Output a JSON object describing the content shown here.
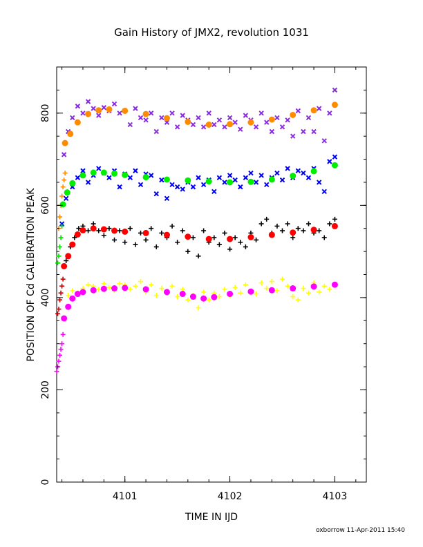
{
  "chart_data": {
    "type": "scatter",
    "title": "Gain History of JMX2, revolution 1031",
    "xlabel": "TIME IN IJD",
    "ylabel": "POSITION OF Cd CALIBRATION PEAK",
    "xlim": [
      4100.35,
      4103.3
    ],
    "ylim": [
      0,
      900
    ],
    "xticks": [
      4101,
      4102,
      4103
    ],
    "xtick_labels": [
      "4101",
      "4102",
      "4103"
    ],
    "yticks": [
      0,
      200,
      400,
      600,
      800
    ],
    "ytick_labels": [
      "0",
      "200",
      "400",
      "600",
      "800"
    ],
    "grid": false,
    "legend": "none",
    "series": [
      {
        "color": "#8a2be2",
        "marker": "x",
        "x": [
          4100.42,
          4100.46,
          4100.5,
          4100.55,
          4100.6,
          4100.65,
          4100.7,
          4100.75,
          4100.8,
          4100.85,
          4100.9,
          4100.95,
          4101.0,
          4101.05,
          4101.1,
          4101.15,
          4101.2,
          4101.25,
          4101.3,
          4101.35,
          4101.4,
          4101.45,
          4101.5,
          4101.55,
          4101.6,
          4101.65,
          4101.7,
          4101.75,
          4101.8,
          4101.85,
          4101.9,
          4101.95,
          4102.0,
          4102.05,
          4102.1,
          4102.15,
          4102.2,
          4102.25,
          4102.3,
          4102.35,
          4102.4,
          4102.45,
          4102.5,
          4102.55,
          4102.6,
          4102.65,
          4102.7,
          4102.75,
          4102.8,
          4102.85,
          4102.9,
          4102.95,
          4103.0
        ],
        "y": [
          710,
          760,
          790,
          815,
          800,
          825,
          810,
          795,
          812,
          805,
          820,
          800,
          805,
          775,
          810,
          790,
          785,
          800,
          760,
          790,
          780,
          800,
          770,
          795,
          785,
          775,
          790,
          770,
          800,
          775,
          785,
          770,
          790,
          780,
          765,
          795,
          785,
          770,
          800,
          780,
          760,
          790,
          770,
          785,
          750,
          805,
          760,
          790,
          760,
          810,
          740,
          800,
          850
        ]
      },
      {
        "color": "#ff8c00",
        "marker": "+",
        "x": [
          4100.37,
          4100.38,
          4100.39,
          4100.4,
          4100.41,
          4100.42,
          4100.43
        ],
        "y": [
          550,
          575,
          600,
          620,
          640,
          655,
          670
        ]
      },
      {
        "color": "#ff8c00",
        "marker": "thick",
        "x": [
          4100.43,
          4100.48,
          4100.55,
          4100.65,
          4100.75,
          4100.85,
          4101.0,
          4101.2,
          4101.4,
          4101.6,
          4101.8,
          4102.0,
          4102.2,
          4102.4,
          4102.6,
          4102.8,
          4103.0
        ],
        "y": [
          735,
          755,
          780,
          798,
          806,
          808,
          805,
          798,
          789,
          781,
          775,
          776,
          780,
          786,
          796,
          806,
          818
        ]
      },
      {
        "color": "#0000ff",
        "marker": "x",
        "x": [
          4100.4,
          4100.44,
          4100.5,
          4100.55,
          4100.6,
          4100.65,
          4100.7,
          4100.75,
          4100.8,
          4100.85,
          4100.9,
          4100.95,
          4101.0,
          4101.05,
          4101.1,
          4101.15,
          4101.2,
          4101.25,
          4101.3,
          4101.35,
          4101.4,
          4101.45,
          4101.5,
          4101.55,
          4101.6,
          4101.65,
          4101.7,
          4101.75,
          4101.8,
          4101.85,
          4101.9,
          4101.95,
          4102.0,
          4102.05,
          4102.1,
          4102.15,
          4102.2,
          4102.25,
          4102.3,
          4102.35,
          4102.4,
          4102.45,
          4102.5,
          4102.55,
          4102.6,
          4102.65,
          4102.7,
          4102.75,
          4102.8,
          4102.85,
          4102.9,
          4102.95,
          4103.0
        ],
        "y": [
          560,
          615,
          640,
          660,
          675,
          650,
          665,
          680,
          670,
          660,
          675,
          640,
          668,
          660,
          675,
          645,
          668,
          665,
          625,
          655,
          615,
          645,
          640,
          635,
          650,
          640,
          660,
          645,
          655,
          630,
          660,
          650,
          665,
          655,
          640,
          660,
          670,
          650,
          665,
          645,
          660,
          670,
          655,
          680,
          660,
          675,
          670,
          660,
          680,
          650,
          630,
          695,
          705
        ]
      },
      {
        "color": "#00dd00",
        "marker": "+",
        "x": [
          4100.36,
          4100.37,
          4100.38,
          4100.39,
          4100.4
        ],
        "y": [
          475,
          490,
          510,
          530,
          555
        ]
      },
      {
        "color": "#00ee00",
        "marker": "thick",
        "x": [
          4100.41,
          4100.45,
          4100.5,
          4100.6,
          4100.7,
          4100.8,
          4100.9,
          4101.0,
          4101.2,
          4101.4,
          4101.6,
          4101.8,
          4102.0,
          4102.2,
          4102.4,
          4102.6,
          4102.8,
          4103.0
        ],
        "y": [
          602,
          628,
          648,
          665,
          671,
          671,
          669,
          666,
          661,
          656,
          654,
          652,
          650,
          651,
          656,
          664,
          674,
          687
        ]
      },
      {
        "color": "#000000",
        "marker": "+",
        "x": [
          4100.44,
          4100.48,
          4100.52,
          4100.56,
          4100.6,
          4100.65,
          4100.7,
          4100.75,
          4100.8,
          4100.85,
          4100.9,
          4100.95,
          4101.0,
          4101.05,
          4101.1,
          4101.15,
          4101.2,
          4101.25,
          4101.3,
          4101.35,
          4101.4,
          4101.45,
          4101.5,
          4101.55,
          4101.6,
          4101.65,
          4101.7,
          4101.75,
          4101.8,
          4101.85,
          4101.9,
          4101.95,
          4102.0,
          4102.05,
          4102.1,
          4102.15,
          4102.2,
          4102.25,
          4102.3,
          4102.35,
          4102.4,
          4102.45,
          4102.5,
          4102.55,
          4102.6,
          4102.65,
          4102.7,
          4102.75,
          4102.8,
          4102.85,
          4102.9,
          4102.95,
          4103.0
        ],
        "y": [
          480,
          510,
          530,
          550,
          555,
          545,
          560,
          545,
          535,
          550,
          525,
          545,
          520,
          550,
          515,
          540,
          525,
          550,
          510,
          540,
          530,
          555,
          520,
          545,
          500,
          530,
          490,
          545,
          520,
          530,
          515,
          540,
          505,
          530,
          520,
          510,
          540,
          525,
          560,
          570,
          540,
          555,
          545,
          560,
          530,
          550,
          545,
          560,
          540,
          545,
          530,
          560,
          570
        ]
      },
      {
        "color": "#cc0000",
        "marker": "+",
        "x": [
          4100.36,
          4100.37,
          4100.38,
          4100.39,
          4100.4,
          4100.41
        ],
        "y": [
          365,
          375,
          395,
          410,
          425,
          440
        ]
      },
      {
        "color": "#ff0000",
        "marker": "thick",
        "x": [
          4100.42,
          4100.46,
          4100.5,
          4100.55,
          4100.6,
          4100.7,
          4100.8,
          4100.9,
          4101.0,
          4101.2,
          4101.4,
          4101.6,
          4101.8,
          4102.0,
          4102.2,
          4102.4,
          4102.6,
          4102.8,
          4103.0
        ],
        "y": [
          468,
          490,
          515,
          537,
          546,
          550,
          548,
          545,
          543,
          540,
          536,
          532,
          527,
          527,
          531,
          536,
          541,
          547,
          555
        ]
      },
      {
        "color": "#ffff00",
        "marker": "+",
        "x": [
          4100.46,
          4100.5,
          4100.55,
          4100.6,
          4100.65,
          4100.7,
          4100.75,
          4100.8,
          4100.85,
          4100.9,
          4100.95,
          4101.0,
          4101.05,
          4101.1,
          4101.15,
          4101.2,
          4101.25,
          4101.3,
          4101.35,
          4101.4,
          4101.45,
          4101.5,
          4101.55,
          4101.6,
          4101.65,
          4101.7,
          4101.75,
          4101.8,
          4101.85,
          4101.9,
          4101.95,
          4102.0,
          4102.05,
          4102.1,
          4102.15,
          4102.2,
          4102.25,
          4102.3,
          4102.35,
          4102.4,
          4102.45,
          4102.5,
          4102.55,
          4102.6,
          4102.65,
          4102.7,
          4102.75,
          4102.8,
          4102.85,
          4102.9,
          4102.95,
          4103.0
        ],
        "y": [
          405,
          415,
          410,
          420,
          428,
          425,
          418,
          430,
          422,
          415,
          430,
          428,
          418,
          425,
          435,
          412,
          428,
          405,
          420,
          410,
          425,
          402,
          418,
          395,
          405,
          378,
          412,
          395,
          410,
          402,
          418,
          405,
          422,
          410,
          428,
          415,
          408,
          432,
          420,
          435,
          415,
          440,
          425,
          402,
          395,
          420,
          410,
          432,
          412,
          425,
          418,
          430
        ]
      },
      {
        "color": "#ff00ff",
        "marker": "+",
        "x": [
          4100.35,
          4100.36,
          4100.37,
          4100.38,
          4100.39,
          4100.4,
          4100.41
        ],
        "y": [
          240,
          250,
          262,
          275,
          288,
          300,
          320
        ]
      },
      {
        "color": "#ff00ff",
        "marker": "thick",
        "x": [
          4100.42,
          4100.46,
          4100.5,
          4100.55,
          4100.6,
          4100.7,
          4100.8,
          4100.9,
          4101.0,
          4101.2,
          4101.4,
          4101.55,
          4101.65,
          4101.75,
          4101.85,
          4102.0,
          4102.2,
          4102.4,
          4102.6,
          4102.8,
          4103.0
        ],
        "y": [
          355,
          380,
          398,
          408,
          412,
          416,
          419,
          420,
          421,
          418,
          412,
          408,
          402,
          398,
          401,
          408,
          413,
          416,
          420,
          424,
          428
        ]
      }
    ]
  },
  "footer": {
    "credit": "oxborrow 11-Apr-2011 15:40"
  }
}
